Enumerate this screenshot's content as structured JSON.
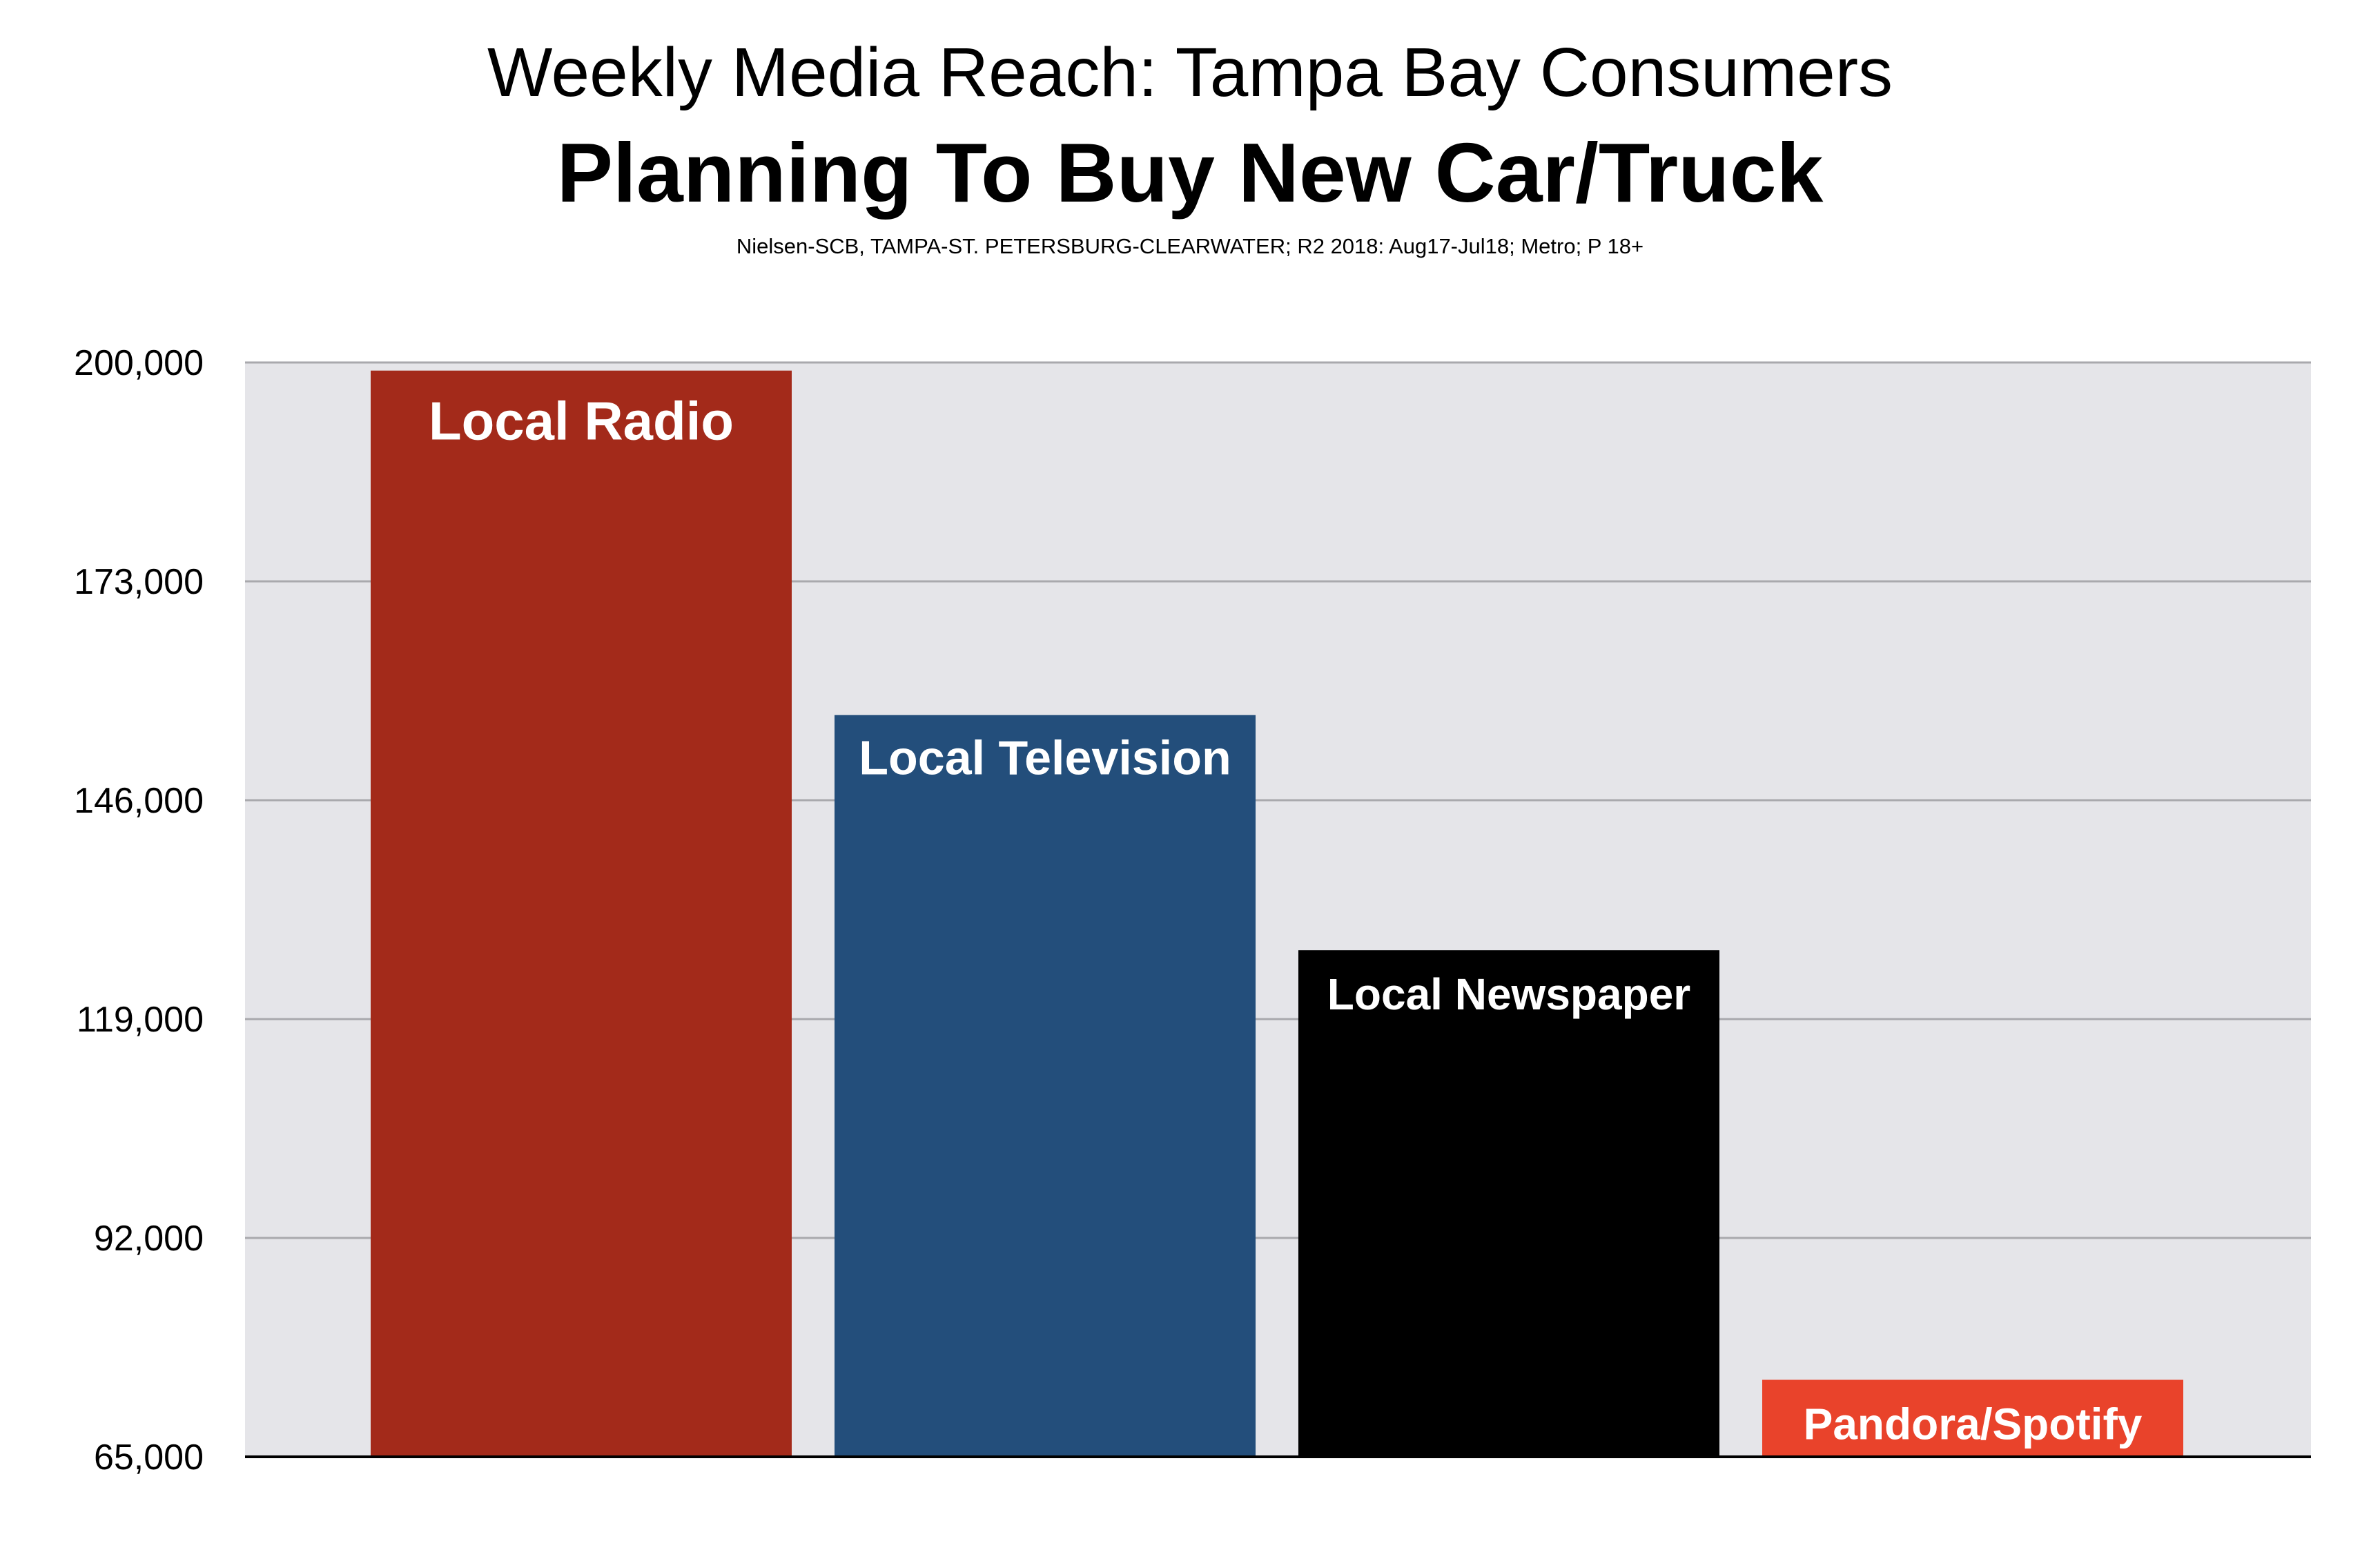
{
  "chart_data": {
    "type": "bar",
    "title": "Weekly Media Reach: Tampa Bay Consumers",
    "subtitle": "Planning To Buy New Car/Truck",
    "source": "Nielsen-SCB, TAMPA-ST. PETERSBURG-CLEARWATER; R2 2018: Aug17-Jul18; Metro; P 18+",
    "categories": [
      "Local Radio",
      "Local Television",
      "Local Newspaper",
      "Pandora/Spotify"
    ],
    "values": [
      199000,
      156500,
      127500,
      74500
    ],
    "colors": [
      "#a32a1a",
      "#234e7b",
      "#000000",
      "#e9432b"
    ],
    "ylim": [
      65000,
      200000
    ],
    "yticks": [
      65000,
      92000,
      119000,
      146000,
      173000,
      200000
    ],
    "ytick_labels": [
      "65,000",
      "92,000",
      "119,000",
      "146,000",
      "173,000",
      "200,000"
    ],
    "grid": true,
    "plot_background": "#e5e5e9",
    "bar_label_color": "#ffffff",
    "legend": "none"
  }
}
